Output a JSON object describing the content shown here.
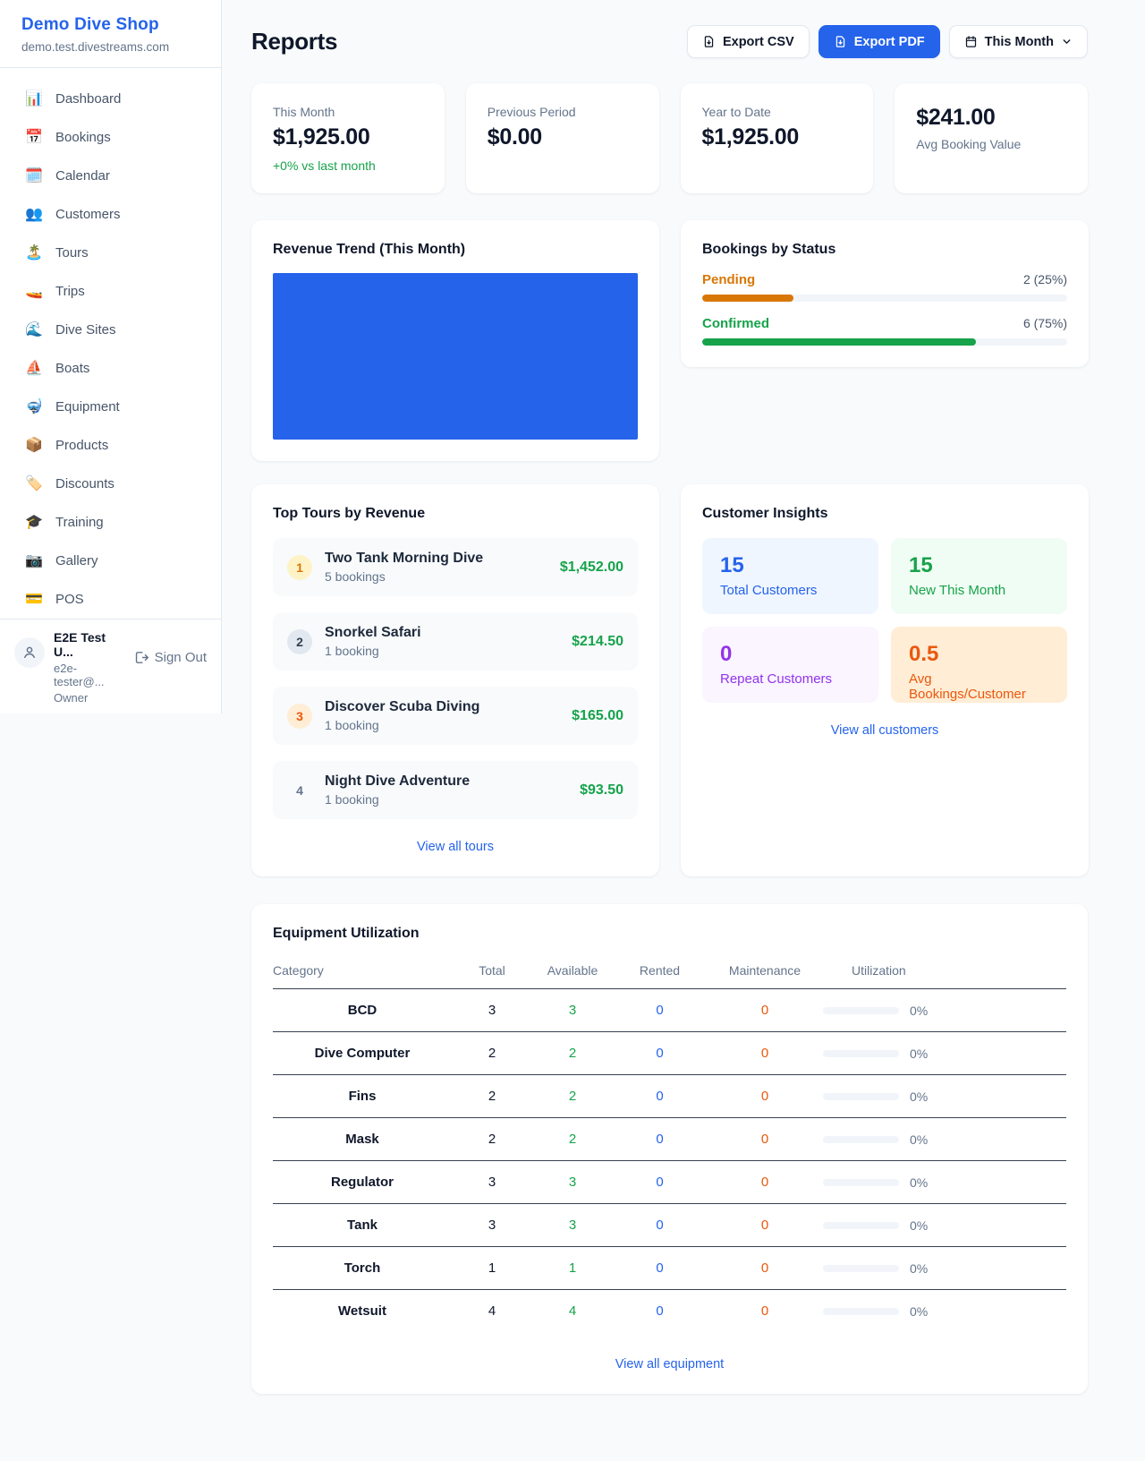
{
  "sidebar": {
    "shop_name": "Demo Dive Shop",
    "shop_domain": "demo.test.divestreams.com",
    "items": [
      {
        "label": "Dashboard",
        "glyph": "📊"
      },
      {
        "label": "Bookings",
        "glyph": "📅"
      },
      {
        "label": "Calendar",
        "glyph": "🗓️"
      },
      {
        "label": "Customers",
        "glyph": "👥"
      },
      {
        "label": "Tours",
        "glyph": "🏝️"
      },
      {
        "label": "Trips",
        "glyph": "🚤"
      },
      {
        "label": "Dive Sites",
        "glyph": "🌊"
      },
      {
        "label": "Boats",
        "glyph": "⛵"
      },
      {
        "label": "Equipment",
        "glyph": "🤿"
      },
      {
        "label": "Products",
        "glyph": "📦"
      },
      {
        "label": "Discounts",
        "glyph": "🏷️"
      },
      {
        "label": "Training",
        "glyph": "🎓"
      },
      {
        "label": "Gallery",
        "glyph": "📷"
      },
      {
        "label": "POS",
        "glyph": "💳"
      }
    ],
    "user": {
      "name": "E2E Test U...",
      "email": "e2e-tester@...",
      "role": "Owner",
      "sign_out_label": "Sign Out"
    }
  },
  "header": {
    "title": "Reports",
    "export_csv_label": "Export CSV",
    "export_pdf_label": "Export PDF",
    "period_label": "This Month"
  },
  "stats": {
    "this_month": {
      "label": "This Month",
      "value": "$1,925.00",
      "delta": "+0% vs last month"
    },
    "previous_period": {
      "label": "Previous Period",
      "value": "$0.00"
    },
    "year_to_date": {
      "label": "Year to Date",
      "value": "$1,925.00"
    },
    "avg_booking": {
      "label": "Avg Booking Value",
      "value": "$241.00"
    }
  },
  "revenue_trend": {
    "title": "Revenue Trend (This Month)",
    "fill_color": "#2563eb"
  },
  "bookings_by_status": {
    "title": "Bookings by Status",
    "rows": [
      {
        "label": "Pending",
        "count_text": "2 (25%)",
        "percent": 25,
        "color": "#d97706"
      },
      {
        "label": "Confirmed",
        "count_text": "6 (75%)",
        "percent": 75,
        "color": "#16a34a"
      }
    ]
  },
  "top_tours": {
    "title": "Top Tours by Revenue",
    "rows": [
      {
        "rank": "1",
        "name": "Two Tank Morning Dive",
        "bookings": "5 bookings",
        "revenue": "$1,452.00"
      },
      {
        "rank": "2",
        "name": "Snorkel Safari",
        "bookings": "1 booking",
        "revenue": "$214.50"
      },
      {
        "rank": "3",
        "name": "Discover Scuba Diving",
        "bookings": "1 booking",
        "revenue": "$165.00"
      },
      {
        "rank": "4",
        "name": "Night Dive Adventure",
        "bookings": "1 booking",
        "revenue": "$93.50"
      }
    ],
    "view_all_label": "View all tours"
  },
  "customer_insights": {
    "title": "Customer Insights",
    "tiles": [
      {
        "value": "15",
        "label": "Total Customers",
        "color": "#2563eb",
        "bg": "#eff6ff"
      },
      {
        "value": "15",
        "label": "New This Month",
        "color": "#16a34a",
        "bg": "#f0fdf4"
      },
      {
        "value": "0",
        "label": "Repeat Customers",
        "color": "#9333ea",
        "bg": "#faf5ff"
      },
      {
        "value": "0.5",
        "label": "Avg Bookings/Customer",
        "color": "#ea580c",
        "bg": "#ffedd5"
      }
    ],
    "view_all_label": "View all customers"
  },
  "equipment": {
    "title": "Equipment Utilization",
    "columns": {
      "category": "Category",
      "total": "Total",
      "available": "Available",
      "rented": "Rented",
      "maintenance": "Maintenance",
      "utilization": "Utilization"
    },
    "rows": [
      {
        "category": "BCD",
        "total": "3",
        "available": "3",
        "rented": "0",
        "maintenance": "0",
        "utilization_pct": 0,
        "utilization": "0%"
      },
      {
        "category": "Dive Computer",
        "total": "2",
        "available": "2",
        "rented": "0",
        "maintenance": "0",
        "utilization_pct": 0,
        "utilization": "0%"
      },
      {
        "category": "Fins",
        "total": "2",
        "available": "2",
        "rented": "0",
        "maintenance": "0",
        "utilization_pct": 0,
        "utilization": "0%"
      },
      {
        "category": "Mask",
        "total": "2",
        "available": "2",
        "rented": "0",
        "maintenance": "0",
        "utilization_pct": 0,
        "utilization": "0%"
      },
      {
        "category": "Regulator",
        "total": "3",
        "available": "3",
        "rented": "0",
        "maintenance": "0",
        "utilization_pct": 0,
        "utilization": "0%"
      },
      {
        "category": "Tank",
        "total": "3",
        "available": "3",
        "rented": "0",
        "maintenance": "0",
        "utilization_pct": 0,
        "utilization": "0%"
      },
      {
        "category": "Torch",
        "total": "1",
        "available": "1",
        "rented": "0",
        "maintenance": "0",
        "utilization_pct": 0,
        "utilization": "0%"
      },
      {
        "category": "Wetsuit",
        "total": "4",
        "available": "4",
        "rented": "0",
        "maintenance": "0",
        "utilization_pct": 0,
        "utilization": "0%"
      }
    ],
    "view_all_label": "View all equipment"
  }
}
